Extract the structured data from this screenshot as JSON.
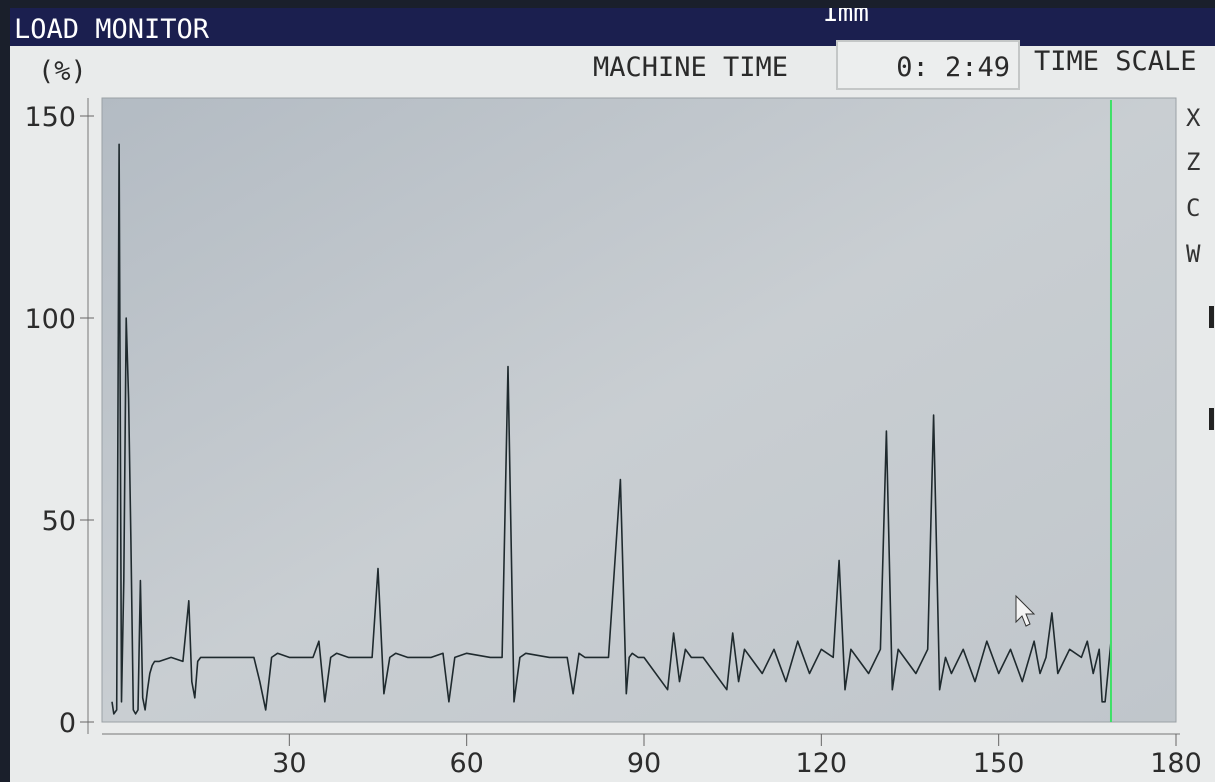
{
  "header": {
    "title": "LOAD MONITOR",
    "scale_top": "1mm",
    "unit": "(%)",
    "machine_time_label": "MACHINE TIME",
    "machine_time_value": "0: 2:49",
    "time_scale_label": "TIME SCALE"
  },
  "axis_letters": [
    "X",
    "Z",
    "C",
    "W"
  ],
  "colors": {
    "title_bar": "#1b1f4f",
    "plot_background": "#bfc5ca",
    "trace": "#1f2a2e",
    "cursor_line": "#3ee067"
  },
  "chart_data": {
    "type": "line",
    "title": "",
    "xlabel": "",
    "ylabel": "(%)",
    "xlim": [
      0,
      180
    ],
    "ylim": [
      0,
      150
    ],
    "xticks": [
      30,
      60,
      90,
      120,
      150,
      180
    ],
    "yticks": [
      0,
      50,
      100,
      150
    ],
    "cursor_x": 169,
    "grid": false,
    "series": [
      {
        "name": "",
        "x": [
          0,
          0.3,
          0.8,
          1.2,
          1.6,
          2.0,
          2.4,
          2.8,
          3.2,
          3.6,
          4.0,
          4.4,
          4.8,
          5.2,
          5.6,
          6.0,
          6.4,
          6.8,
          7.2,
          8,
          10,
          12,
          13,
          13.5,
          14,
          14.5,
          15,
          16,
          20,
          24,
          25,
          26,
          27,
          28,
          30,
          34,
          35,
          36,
          37,
          38,
          40,
          44,
          45,
          46,
          47,
          48,
          50,
          54,
          56,
          57,
          58,
          60,
          64,
          66,
          67,
          68,
          69,
          70,
          74,
          77,
          78,
          79,
          80,
          84,
          86,
          87,
          87.5,
          88,
          89,
          90,
          94,
          95,
          96,
          97,
          98,
          100,
          104,
          105,
          106,
          107,
          108,
          110,
          112,
          114,
          116,
          118,
          120,
          122,
          123,
          124,
          125,
          126,
          128,
          130,
          131,
          132,
          133,
          134,
          136,
          138,
          139,
          140,
          141,
          142,
          144,
          146,
          148,
          150,
          152,
          154,
          156,
          157,
          158,
          159,
          160,
          162,
          164,
          165,
          166,
          167,
          167.5,
          168,
          169
        ],
        "y": [
          5,
          2,
          3,
          143,
          5,
          35,
          100,
          80,
          45,
          3,
          2,
          3,
          35,
          6,
          3,
          8,
          12,
          14,
          15,
          15,
          16,
          15,
          30,
          10,
          6,
          15,
          16,
          16,
          16,
          16,
          10,
          3,
          16,
          17,
          16,
          16,
          20,
          5,
          16,
          17,
          16,
          16,
          38,
          7,
          16,
          17,
          16,
          16,
          17,
          5,
          16,
          17,
          16,
          16,
          88,
          5,
          16,
          17,
          16,
          16,
          7,
          17,
          16,
          16,
          60,
          7,
          16,
          17,
          16,
          16,
          8,
          22,
          10,
          18,
          16,
          16,
          8,
          22,
          10,
          18,
          16,
          12,
          18,
          10,
          20,
          12,
          18,
          16,
          40,
          8,
          18,
          16,
          12,
          18,
          72,
          8,
          18,
          16,
          12,
          18,
          76,
          8,
          16,
          12,
          18,
          10,
          20,
          12,
          18,
          10,
          20,
          12,
          16,
          27,
          12,
          18,
          16,
          20,
          12,
          18,
          5,
          5,
          20
        ]
      }
    ]
  }
}
